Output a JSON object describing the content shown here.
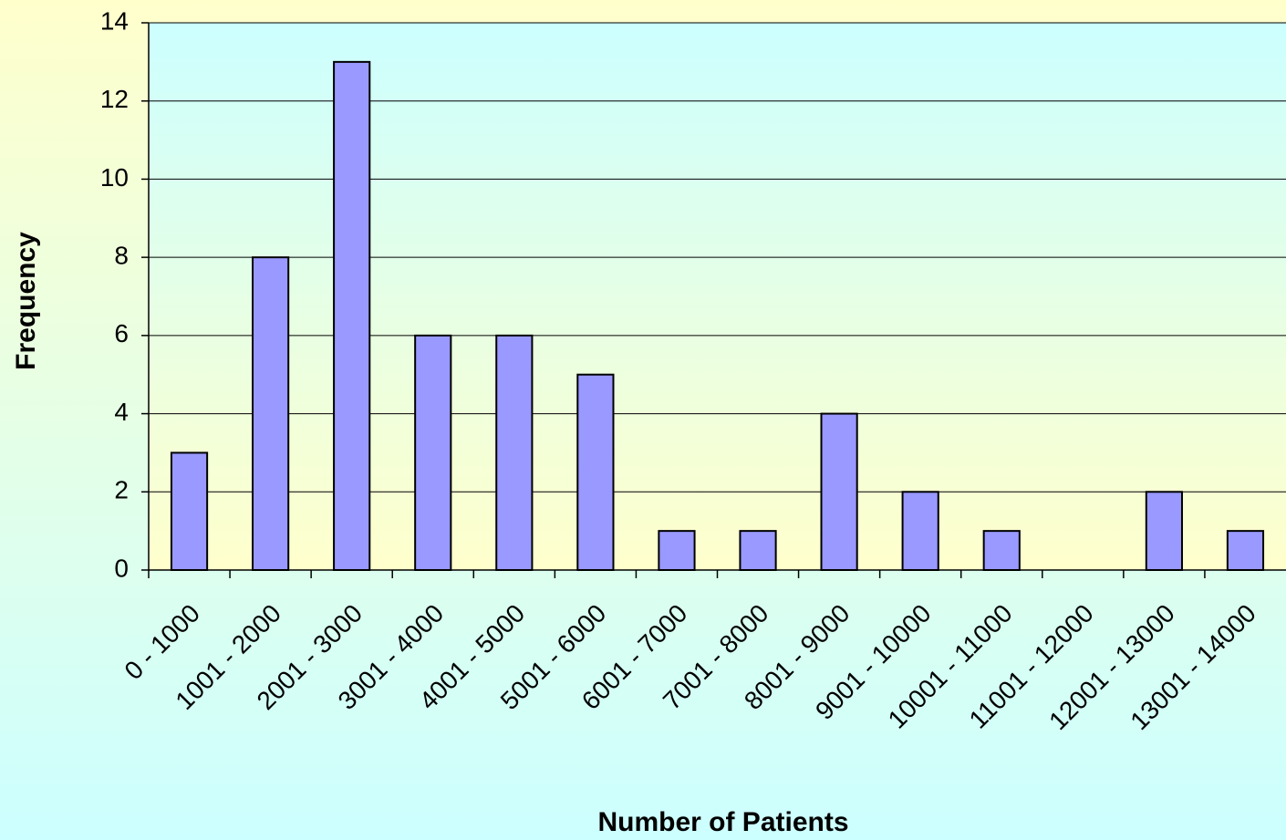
{
  "chart_data": {
    "type": "bar",
    "x_label": "Number of Patients",
    "y_label": "Frequency",
    "categories": [
      "0 - 1000",
      "1001 - 2000",
      "2001 - 3000",
      "3001 - 4000",
      "4001 - 5000",
      "5001 - 6000",
      "6001 - 7000",
      "7001 - 8000",
      "8001 - 9000",
      "9001 - 10000",
      "10001 - 11000",
      "11001 - 12000",
      "12001 - 13000",
      "13001 - 14000"
    ],
    "values": [
      3,
      8,
      13,
      6,
      6,
      5,
      1,
      1,
      4,
      2,
      1,
      0,
      2,
      1
    ],
    "color": "#9999ff",
    "ylim": [
      0,
      14
    ],
    "yticks": [
      0,
      2,
      4,
      6,
      8,
      10,
      12,
      14
    ],
    "grid": true
  }
}
